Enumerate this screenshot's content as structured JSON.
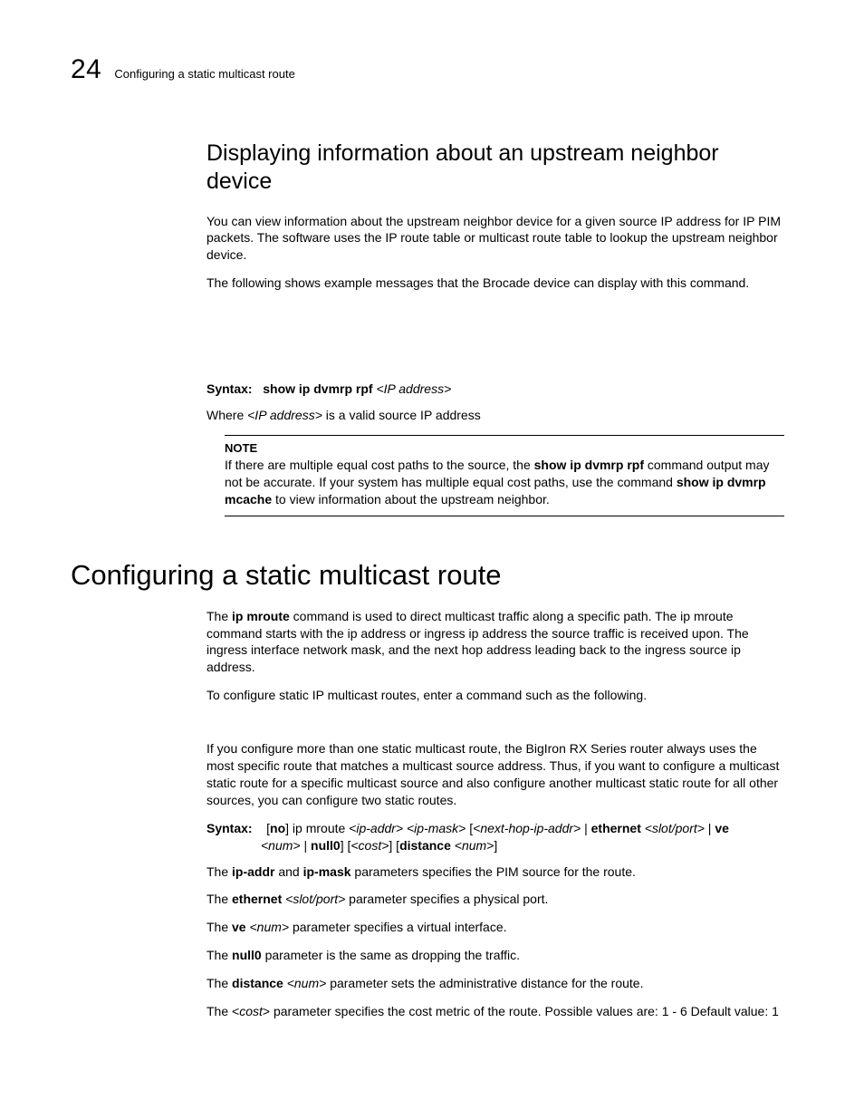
{
  "page": {
    "chapter_number": "24",
    "running_title": "Configuring a static multicast route"
  },
  "section1": {
    "heading": "Displaying information about an upstream neighbor device",
    "p1": "You can view information about the upstream neighbor device for a given source IP address for IP PIM packets. The software uses the IP route table or multicast route table to lookup the upstream neighbor device.",
    "p2": "The following shows example messages that the Brocade device can display with this command.",
    "syntax_label": "Syntax:",
    "syntax_cmd": "show ip dvmrp rpf",
    "syntax_arg": "<IP address>",
    "where_prefix": "Where ",
    "where_arg": "<IP address>",
    "where_suffix": " is a valid source IP address",
    "note_label": "NOTE",
    "note_t1": "If there are multiple equal cost paths to the source, the ",
    "note_cmd1": "show ip dvmrp rpf",
    "note_t2": " command output may not be accurate. If your system has multiple equal cost paths, use the command ",
    "note_cmd2": "show ip dvmrp mcache",
    "note_t3": " to view information about the upstream neighbor."
  },
  "section2": {
    "heading": "Configuring a static multicast route",
    "p1a": "The ",
    "p1cmd": "ip mroute",
    "p1b": " command is used to direct multicast traffic along a specific path. The ip mroute command starts with the ip address or ingress ip address the source traffic is received upon. The ingress interface network mask, and the next hop address leading back to the ingress source ip address.",
    "p2": "To configure static IP multicast routes, enter a command such as the following.",
    "p3": "If you configure more than one static multicast route, the BigIron RX Series router always uses the most specific route that matches a multicast source address. Thus, if you want to configure a multicast static route for a specific multicast source and also configure another multicast static route for all other sources, you can configure two static routes.",
    "syn_label": "Syntax:",
    "syn_lb": "[",
    "syn_no": "no",
    "syn_rb": "] ip mroute ",
    "syn_ipaddr": "<ip-addr>",
    "syn_sp": " ",
    "syn_ipmask": "<ip-mask>",
    "syn_lb2": " [",
    "syn_nexthop": "<next-hop-ip-addr>",
    "syn_pipe": " | ",
    "syn_eth": "ethernet",
    "syn_slotport": "<slot/port>",
    "syn_ve": "ve",
    "syn_num": "<num>",
    "syn_null0": "null0",
    "syn_rb2": "] [",
    "syn_cost": "<cost>",
    "syn_rb3": "] [",
    "syn_distance": "distance",
    "syn_num2": "<num>",
    "syn_rb4": "]",
    "p4a": "The ",
    "p4b1": "ip-addr",
    "p4c": " and ",
    "p4b2": "ip-mask",
    "p4d": " parameters specifies the PIM source for the route.",
    "p5a": "The ",
    "p5b": "ethernet",
    "p5c": " ",
    "p5i": "<slot/port>",
    "p5d": " parameter specifies a physical port.",
    "p6a": "The ",
    "p6b": "ve",
    "p6c": " ",
    "p6i": "<num>",
    "p6d": " parameter specifies a virtual interface.",
    "p7a": "The ",
    "p7b": "null0",
    "p7c": " parameter is the same as dropping the traffic.",
    "p8a": "The ",
    "p8b": "distance",
    "p8c": " ",
    "p8i": "<num>",
    "p8d": " parameter sets the administrative distance for the route.",
    "p9a": "The <",
    "p9i": "cost",
    "p9b": "> parameter specifies the cost metric of the route. Possible values are: 1 - 6 Default value: 1"
  }
}
